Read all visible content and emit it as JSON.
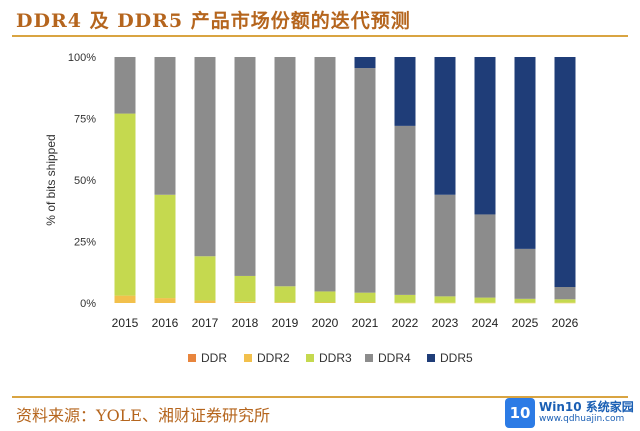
{
  "title": "DDR4 及 DDR5 产品市场份额的迭代预测",
  "source": "资料来源：YOLE、湘财证券研究所",
  "watermark": {
    "logo": "10",
    "brand": "Win10 系统家园",
    "url": "www.qdhuajin.com"
  },
  "colors": {
    "header": "#b5651d",
    "rule": "#d9a441"
  },
  "chart_data": {
    "type": "bar",
    "stacked": true,
    "title": "",
    "xlabel": "",
    "ylabel": "% of bits shipped",
    "ylim": [
      0,
      100
    ],
    "yticks": [
      0,
      25,
      50,
      75,
      100
    ],
    "ytick_labels": [
      "0%",
      "25%",
      "50%",
      "75%",
      "100%"
    ],
    "categories": [
      "2015",
      "2016",
      "2017",
      "2018",
      "2019",
      "2020",
      "2021",
      "2022",
      "2023",
      "2024",
      "2025",
      "2026"
    ],
    "legend_position": "bottom",
    "series": [
      {
        "name": "DDR",
        "color": "#e8853d",
        "values": [
          0,
          0,
          0,
          0,
          0,
          0,
          0,
          0,
          0,
          0,
          0,
          0
        ]
      },
      {
        "name": "DDR2",
        "color": "#f2c04c",
        "values": [
          3,
          2,
          1,
          0.5,
          0.3,
          0.2,
          0.2,
          0.1,
          0.1,
          0.1,
          0.1,
          0.1
        ]
      },
      {
        "name": "DDR3",
        "color": "#c5d94f",
        "values": [
          74,
          42,
          18,
          10.5,
          6.5,
          4.5,
          4,
          3.2,
          2.6,
          2.1,
          1.6,
          1.4
        ]
      },
      {
        "name": "DDR4",
        "color": "#8c8c8c",
        "values": [
          23,
          56,
          81,
          89,
          93.2,
          95.3,
          91.3,
          68.7,
          41.3,
          33.8,
          20.3,
          5
        ]
      },
      {
        "name": "DDR5",
        "color": "#1f3d78",
        "values": [
          0,
          0,
          0,
          0,
          0,
          0,
          4.5,
          28,
          56,
          64,
          78,
          93.5
        ]
      }
    ]
  }
}
